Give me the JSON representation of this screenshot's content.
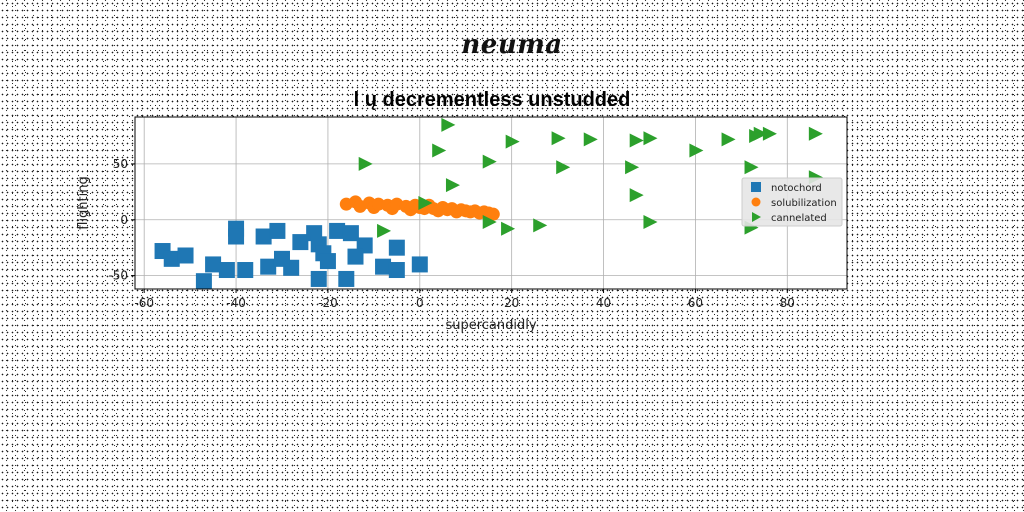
{
  "suptitle": "neuma",
  "chart_data": {
    "type": "scatter",
    "title": "l ų decrementless unstudded",
    "xlabel": "supercandidly",
    "ylabel": "flighting",
    "xlim": [
      -62,
      93
    ],
    "ylim": [
      -62,
      92
    ],
    "xticks": [
      -60,
      -40,
      -20,
      0,
      20,
      40,
      60,
      80
    ],
    "yticks": [
      -50,
      0,
      50
    ],
    "grid": true,
    "legend_position": "right",
    "series": [
      {
        "name": "notochord",
        "marker": "square",
        "color": "#1f77b4",
        "points": [
          [
            -56,
            -28
          ],
          [
            -54,
            -35
          ],
          [
            -51,
            -32
          ],
          [
            -45,
            -40
          ],
          [
            -42,
            -45
          ],
          [
            -47,
            -55
          ],
          [
            -40,
            -8
          ],
          [
            -40,
            -15
          ],
          [
            -38,
            -45
          ],
          [
            -34,
            -15
          ],
          [
            -31,
            -10
          ],
          [
            -33,
            -42
          ],
          [
            -28,
            -43
          ],
          [
            -30,
            -35
          ],
          [
            -26,
            -20
          ],
          [
            -23,
            -12
          ],
          [
            -22,
            -22
          ],
          [
            -21,
            -30
          ],
          [
            -20,
            -37
          ],
          [
            -22,
            -53
          ],
          [
            -18,
            -10
          ],
          [
            -15,
            -12
          ],
          [
            -12,
            -23
          ],
          [
            -14,
            -33
          ],
          [
            -16,
            -53
          ],
          [
            -8,
            -42
          ],
          [
            -5,
            -45
          ],
          [
            -5,
            -25
          ],
          [
            0,
            -40
          ]
        ]
      },
      {
        "name": "solubilization",
        "marker": "circle",
        "color": "#ff7f0e",
        "points": [
          [
            -16,
            14
          ],
          [
            -14,
            16
          ],
          [
            -13,
            12
          ],
          [
            -11,
            15
          ],
          [
            -10,
            11
          ],
          [
            -9,
            14
          ],
          [
            -7,
            13
          ],
          [
            -6,
            10
          ],
          [
            -5,
            14
          ],
          [
            -3,
            12
          ],
          [
            -2,
            9
          ],
          [
            -1,
            13
          ],
          [
            0,
            11
          ],
          [
            1,
            10
          ],
          [
            2,
            13
          ],
          [
            3,
            10
          ],
          [
            4,
            8
          ],
          [
            5,
            11
          ],
          [
            6,
            9
          ],
          [
            7,
            10
          ],
          [
            8,
            7
          ],
          [
            9,
            9
          ],
          [
            10,
            8
          ],
          [
            11,
            7
          ],
          [
            12,
            8
          ],
          [
            13,
            6
          ],
          [
            14,
            7
          ],
          [
            15,
            6
          ],
          [
            16,
            5
          ]
        ]
      },
      {
        "name": "cannelated",
        "marker": "triangle-right",
        "color": "#2ca02c",
        "points": [
          [
            6,
            85
          ],
          [
            4,
            62
          ],
          [
            -12,
            50
          ],
          [
            7,
            31
          ],
          [
            1,
            15
          ],
          [
            -8,
            -10
          ],
          [
            15,
            -2
          ],
          [
            15,
            52
          ],
          [
            20,
            70
          ],
          [
            19,
            -8
          ],
          [
            26,
            -5
          ],
          [
            30,
            73
          ],
          [
            37,
            72
          ],
          [
            31,
            47
          ],
          [
            46,
            47
          ],
          [
            47,
            22
          ],
          [
            47,
            71
          ],
          [
            50,
            73
          ],
          [
            50,
            -2
          ],
          [
            60,
            62
          ],
          [
            67,
            72
          ],
          [
            73,
            75
          ],
          [
            74,
            77
          ],
          [
            76,
            77
          ],
          [
            72,
            47
          ],
          [
            86,
            77
          ],
          [
            72,
            -7
          ],
          [
            86,
            38
          ]
        ]
      }
    ]
  }
}
